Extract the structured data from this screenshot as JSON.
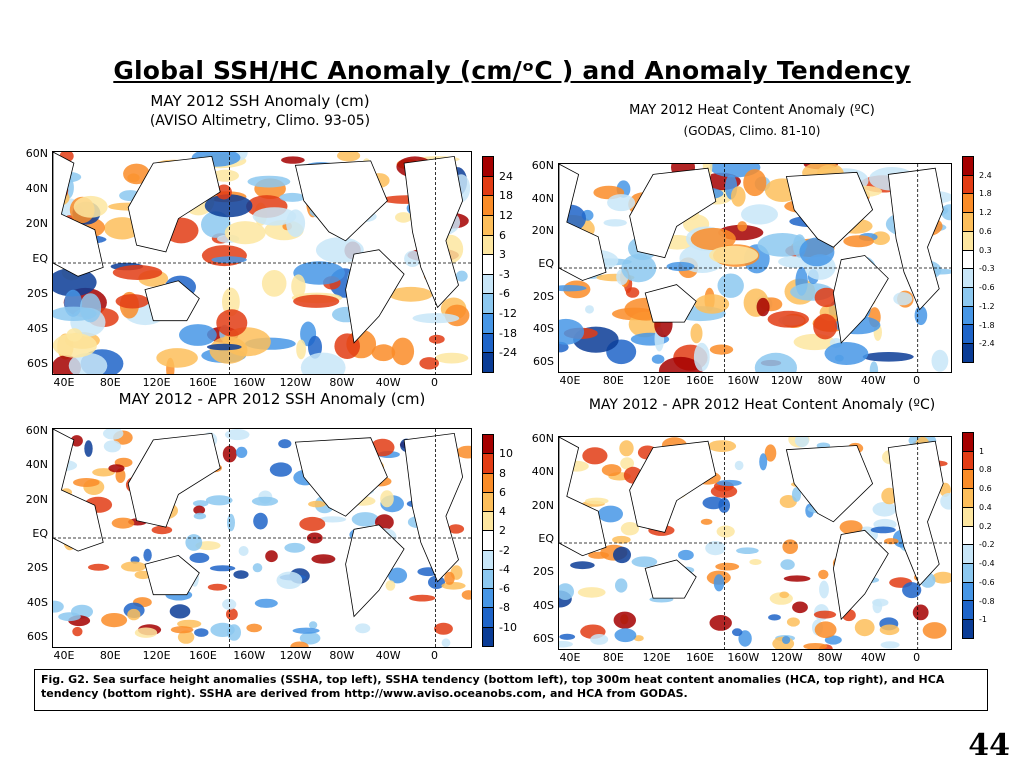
{
  "slide": {
    "title": "Global SSH/HC Anomaly (cm/ᵒC ) and Anomaly Tendency",
    "page_number": "44",
    "caption": "Fig. G2. Sea surface height anomalies (SSHA, top left), SSHA tendency (bottom left), top 300m heat content anomalies (HCA, top right), and HCA tendency (bottom right).  SSHA are derived from http://www.aviso.oceanobs.com, and HCA from GODAS."
  },
  "panels": [
    {
      "id": "ssh-anomaly",
      "title_line1": "MAY 2012 SSH Anomaly (cm)",
      "title_line2": "(AVISO Altimetry, Climo. 93-05)",
      "lat_labels": [
        "60N",
        "40N",
        "20N",
        "EQ",
        "20S",
        "40S",
        "60S"
      ],
      "lon_labels": [
        "40E",
        "80E",
        "120E",
        "160E",
        "160W",
        "120W",
        "80W",
        "40W",
        "0"
      ],
      "colorbar_labels": [
        "24",
        "18",
        "12",
        "6",
        "3",
        "-3",
        "-6",
        "-12",
        "-18",
        "-24"
      ],
      "colorbar_colors": [
        "#a50000",
        "#e23c14",
        "#fa8c28",
        "#fdbe5a",
        "#fde6a0",
        "#ffffff",
        "#c8e6f8",
        "#8cc8f0",
        "#4696e6",
        "#1e64c8",
        "#0a3c96"
      ]
    },
    {
      "id": "heat-content-anomaly",
      "title_line1": "MAY 2012 Heat Content Anomaly (ºC)",
      "title_line2": "(GODAS,  Climo. 81-10)",
      "lat_labels": [
        "60N",
        "40N",
        "20N",
        "EQ",
        "20S",
        "40S",
        "60S"
      ],
      "lon_labels": [
        "40E",
        "80E",
        "120E",
        "160E",
        "160W",
        "120W",
        "80W",
        "40W",
        "0"
      ],
      "colorbar_labels": [
        "2.4",
        "1.8",
        "1.2",
        "0.6",
        "0.3",
        "-0.3",
        "-0.6",
        "-1.2",
        "-1.8",
        "-2.4"
      ],
      "colorbar_colors": [
        "#a50000",
        "#e23c14",
        "#fa8c28",
        "#fdbe5a",
        "#fde6a0",
        "#ffffff",
        "#c8e6f8",
        "#8cc8f0",
        "#4696e6",
        "#1e64c8",
        "#0a3c96"
      ]
    },
    {
      "id": "ssh-tendency",
      "title_line1": "MAY 2012 - APR 2012 SSH Anomaly (cm)",
      "title_line2": "",
      "lat_labels": [
        "60N",
        "40N",
        "20N",
        "EQ",
        "20S",
        "40S",
        "60S"
      ],
      "lon_labels": [
        "40E",
        "80E",
        "120E",
        "160E",
        "160W",
        "120W",
        "80W",
        "40W",
        "0"
      ],
      "colorbar_labels": [
        "10",
        "8",
        "6",
        "4",
        "2",
        "-2",
        "-4",
        "-6",
        "-8",
        "-10"
      ],
      "colorbar_colors": [
        "#a50000",
        "#e23c14",
        "#fa8c28",
        "#fdbe5a",
        "#fde6a0",
        "#ffffff",
        "#c8e6f8",
        "#8cc8f0",
        "#4696e6",
        "#1e64c8",
        "#0a3c96"
      ]
    },
    {
      "id": "heat-content-tendency",
      "title_line1": "MAY 2012 - APR 2012 Heat Content Anomaly (ºC)",
      "title_line2": "",
      "lat_labels": [
        "60N",
        "40N",
        "20N",
        "EQ",
        "20S",
        "40S",
        "60S"
      ],
      "lon_labels": [
        "40E",
        "80E",
        "120E",
        "160E",
        "160W",
        "120W",
        "80W",
        "40W",
        "0"
      ],
      "colorbar_labels": [
        "1",
        "0.8",
        "0.6",
        "0.4",
        "0.2",
        "-0.2",
        "-0.4",
        "-0.6",
        "-0.8",
        "-1"
      ],
      "colorbar_colors": [
        "#a50000",
        "#e23c14",
        "#fa8c28",
        "#fdbe5a",
        "#fde6a0",
        "#ffffff",
        "#c8e6f8",
        "#8cc8f0",
        "#4696e6",
        "#1e64c8",
        "#0a3c96"
      ]
    }
  ]
}
